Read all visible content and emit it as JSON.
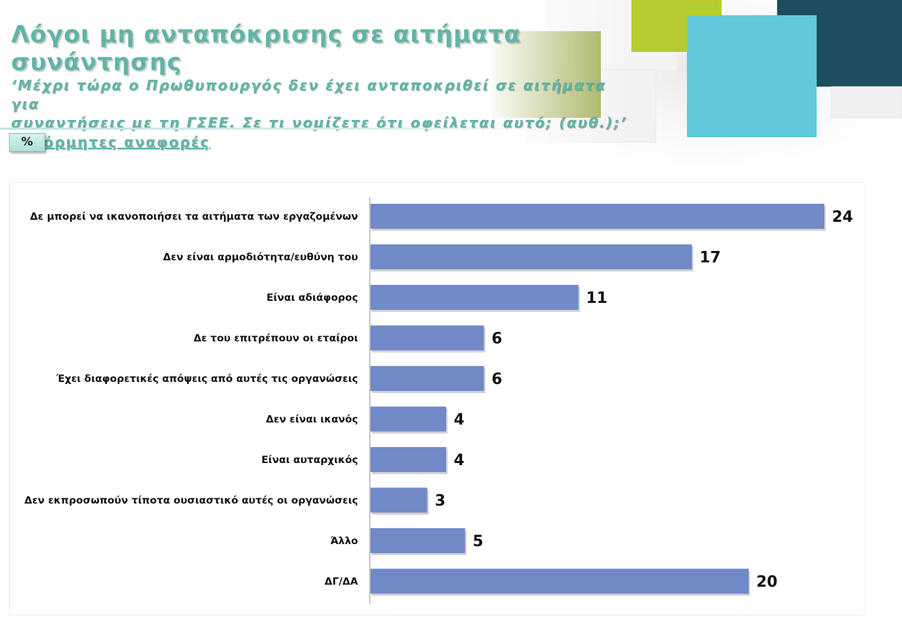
{
  "title": "Λόγοι μη ανταπόκρισης σε αιτήματα συνάντησης",
  "subtitle_line1": "‘Μέχρι τώρα ο Πρωθυπουργός δεν έχει ανταποκριθεί σε αιτήματα για",
  "subtitle_line2": "συναντήσεις με τη ΓΣΕΕ. Σε τι νομίζετε ότι οφείλεται αυτό; (αυθ.);’",
  "note": "αυθόρμητες αναφορές",
  "unit": "%",
  "colors": {
    "title": "#5fb5a6",
    "bar": "#7189c6",
    "label": "#111111",
    "deco_teal_dark": "#1c4e60",
    "deco_cyan": "#62c9da",
    "deco_lime": "#b6cc2e",
    "deco_olive": "#8d9a2b"
  },
  "chart_data": {
    "type": "bar",
    "orientation": "horizontal",
    "categories": [
      "Δε μπορεί να ικανοποιήσει τα αιτήματα των εργαζομένων",
      "Δεν είναι αρμοδιότητα/ευθύνη του",
      "Είναι αδιάφορος",
      "Δε του επιτρέπουν οι εταίροι",
      "Έχει διαφορετικές απόψεις από αυτές τις οργανώσεις",
      "Δεν είναι ικανός",
      "Είναι αυταρχικός",
      "Δεν εκπροσωπούν τίποτα ουσιαστικό αυτές οι οργανώσεις",
      "Άλλο",
      "ΔΓ/ΔΑ"
    ],
    "values": [
      24,
      17,
      11,
      6,
      6,
      4,
      4,
      3,
      5,
      20
    ],
    "data_labels": [
      "24",
      "17",
      "11",
      "6",
      "6",
      "4",
      "4",
      "3",
      "5",
      "20"
    ],
    "xlim": [
      0,
      24
    ],
    "grid": false,
    "legend": "none"
  }
}
